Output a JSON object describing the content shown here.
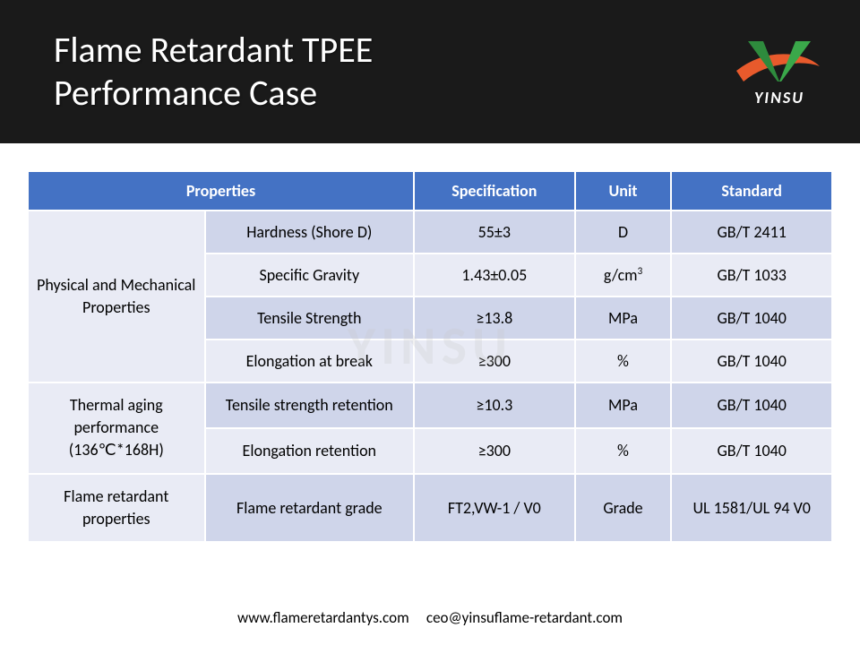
{
  "header": {
    "title_line1": "Flame Retardant TPEE",
    "title_line2": "Performance Case",
    "logo_text": "YINSU"
  },
  "watermark": "YINSU",
  "table": {
    "header_bg": "#4472c4",
    "header_text_color": "#ffffff",
    "row_a_bg": "#cfd5ea",
    "row_b_bg": "#e9ebf5",
    "cat_bg": "#e9ebf5",
    "columns": [
      "Properties",
      "Specification",
      "Unit",
      "Standard"
    ],
    "col_widths": [
      "22%",
      "26%",
      "20%",
      "12%",
      "20%"
    ],
    "font_size": 18,
    "groups": [
      {
        "category": "Physical and Mechanical Properties",
        "rows": [
          {
            "property": "Hardness (Shore D)",
            "spec": "55±3",
            "unit": "D",
            "standard": "GB/T 2411"
          },
          {
            "property": "Specific Gravity",
            "spec": "1.43±0.05",
            "unit": "g/cm³",
            "standard": "GB/T 1033"
          },
          {
            "property": "Tensile Strength",
            "spec": "≥13.8",
            "unit": "MPa",
            "standard": "GB/T 1040"
          },
          {
            "property": "Elongation at break",
            "spec": "≥300",
            "unit": "%",
            "standard": "GB/T 1040"
          }
        ]
      },
      {
        "category": "Thermal aging performance (136℃*168H)",
        "rows": [
          {
            "property": "Tensile strength retention",
            "spec": "≥10.3",
            "unit": "MPa",
            "standard": "GB/T 1040"
          },
          {
            "property": "Elongation retention",
            "spec": "≥300",
            "unit": "%",
            "standard": "GB/T 1040"
          }
        ]
      },
      {
        "category": "Flame retardant properties",
        "rows": [
          {
            "property": "Flame retardant grade",
            "spec": "FT2,VW-1 / V0",
            "unit": "Grade",
            "standard": "UL 1581/UL 94 V0"
          }
        ]
      }
    ]
  },
  "footer": {
    "website": "www.flameretardantys.com",
    "email": "ceo@yinsuflame-retardant.com"
  },
  "logo_colors": {
    "v_left": "#2e8b3d",
    "v_right": "#3aa84a",
    "swoosh": "#e85a2c"
  }
}
